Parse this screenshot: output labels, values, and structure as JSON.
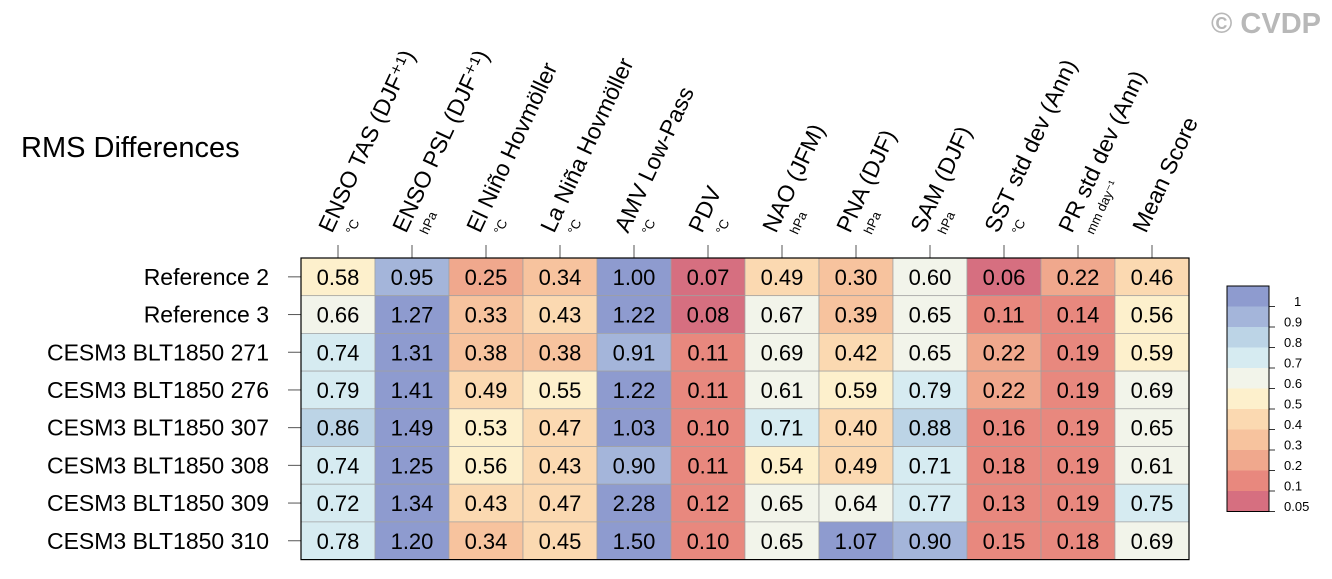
{
  "watermark": "© CVDP",
  "chart_data": {
    "type": "heatmap",
    "title": "RMS Differences",
    "columns": [
      {
        "name": "ENSO TAS (DJF⁺¹)",
        "unit": "°C"
      },
      {
        "name": "ENSO PSL (DJF⁺¹)",
        "unit": "hPa"
      },
      {
        "name": "El Niño Hovmöller",
        "unit": "°C"
      },
      {
        "name": "La Niña Hovmöller",
        "unit": "°C"
      },
      {
        "name": "AMV Low-Pass",
        "unit": "°C"
      },
      {
        "name": "PDV",
        "unit": "°C"
      },
      {
        "name": "NAO (JFM)",
        "unit": "hPa"
      },
      {
        "name": "PNA (DJF)",
        "unit": "hPa"
      },
      {
        "name": "SAM (DJF)",
        "unit": "hPa"
      },
      {
        "name": "SST std dev (Ann)",
        "unit": "°C"
      },
      {
        "name": "PR std dev (Ann)",
        "unit": "mm day⁻¹"
      },
      {
        "name": "Mean Score",
        "unit": ""
      }
    ],
    "rows": [
      {
        "label": "Reference 2",
        "values": [
          "0.58",
          "0.95",
          "0.25",
          "0.34",
          "1.00",
          "0.07",
          "0.49",
          "0.30",
          "0.60",
          "0.06",
          "0.22",
          "0.46"
        ]
      },
      {
        "label": "Reference 3",
        "values": [
          "0.66",
          "1.27",
          "0.33",
          "0.43",
          "1.22",
          "0.08",
          "0.67",
          "0.39",
          "0.65",
          "0.11",
          "0.14",
          "0.56"
        ]
      },
      {
        "label": "CESM3 BLT1850 271",
        "values": [
          "0.74",
          "1.31",
          "0.38",
          "0.38",
          "0.91",
          "0.11",
          "0.69",
          "0.42",
          "0.65",
          "0.22",
          "0.19",
          "0.59"
        ]
      },
      {
        "label": "CESM3 BLT1850 276",
        "values": [
          "0.79",
          "1.41",
          "0.49",
          "0.55",
          "1.22",
          "0.11",
          "0.61",
          "0.59",
          "0.79",
          "0.22",
          "0.19",
          "0.69"
        ]
      },
      {
        "label": "CESM3 BLT1850 307",
        "values": [
          "0.86",
          "1.49",
          "0.53",
          "0.47",
          "1.03",
          "0.10",
          "0.71",
          "0.40",
          "0.88",
          "0.16",
          "0.19",
          "0.65"
        ]
      },
      {
        "label": "CESM3 BLT1850 308",
        "values": [
          "0.74",
          "1.25",
          "0.56",
          "0.43",
          "0.90",
          "0.11",
          "0.54",
          "0.49",
          "0.71",
          "0.18",
          "0.19",
          "0.61"
        ]
      },
      {
        "label": "CESM3 BLT1850 309",
        "values": [
          "0.72",
          "1.34",
          "0.43",
          "0.47",
          "2.28",
          "0.12",
          "0.65",
          "0.64",
          "0.77",
          "0.13",
          "0.19",
          "0.75"
        ]
      },
      {
        "label": "CESM3 BLT1850 310",
        "values": [
          "0.78",
          "1.20",
          "0.34",
          "0.45",
          "1.50",
          "0.10",
          "0.65",
          "1.07",
          "0.90",
          "0.15",
          "0.18",
          "0.69"
        ]
      }
    ],
    "colorbar": {
      "labels": [
        "1",
        "0.9",
        "0.8",
        "0.7",
        "0.6",
        "0.5",
        "0.4",
        "0.3",
        "0.2",
        "0.1",
        "0.05"
      ],
      "levels": [
        1.0,
        0.9,
        0.8,
        0.7,
        0.6,
        0.5,
        0.4,
        0.3,
        0.2,
        0.1,
        0.05
      ],
      "colors": [
        "#8e9bcf",
        "#a4b5da",
        "#bcd4e6",
        "#d6ebf1",
        "#f2f4ea",
        "#fdf0cc",
        "#fbd9b1",
        "#f7c39e",
        "#f0a88d",
        "#e8887e",
        "#d66f80"
      ]
    }
  }
}
